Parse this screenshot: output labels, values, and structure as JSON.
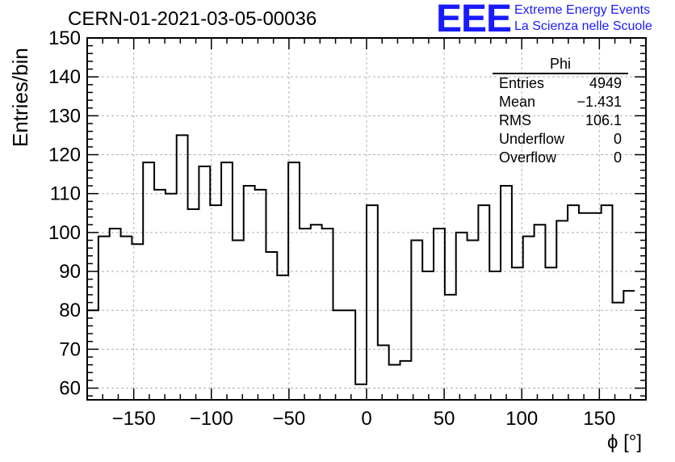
{
  "header": {
    "run_title": "CERN-01-2021-03-05-00036",
    "logo_text": "EEE",
    "logo_line1": "Extreme Energy Events",
    "logo_line2": "La Scienza nelle Scuole",
    "logo_color": "#1a1aff"
  },
  "stats": {
    "title": "Phi",
    "rows": [
      {
        "key": "Entries",
        "value": "4949"
      },
      {
        "key": "Mean",
        "value": "−1.431"
      },
      {
        "key": "RMS",
        "value": "106.1"
      },
      {
        "key": "Underflow",
        "value": "0"
      },
      {
        "key": "Overflow",
        "value": "0"
      }
    ]
  },
  "chart_data": {
    "type": "histogram",
    "title": "CERN-01-2021-03-05-00036",
    "xlabel": "ϕ [°]",
    "ylabel": "Entries/bin",
    "xlim": [
      -180,
      180
    ],
    "ylim": [
      57,
      150
    ],
    "grid": true,
    "bin_width": 7.2,
    "xticks": [
      -150,
      -100,
      -50,
      0,
      50,
      100,
      150
    ],
    "xtick_labels": [
      "−150",
      "−100",
      "−50",
      "0",
      "50",
      "100",
      "150"
    ],
    "yticks": [
      60,
      70,
      80,
      90,
      100,
      110,
      120,
      130,
      140,
      150
    ],
    "ytick_labels": [
      "60",
      "70",
      "80",
      "90",
      "100",
      "110",
      "120",
      "130",
      "140",
      "150"
    ],
    "bins": [
      {
        "x": -180.0,
        "y": 80
      },
      {
        "x": -172.8,
        "y": 99
      },
      {
        "x": -165.6,
        "y": 101
      },
      {
        "x": -158.4,
        "y": 99
      },
      {
        "x": -151.2,
        "y": 97
      },
      {
        "x": -144.0,
        "y": 118
      },
      {
        "x": -136.8,
        "y": 111
      },
      {
        "x": -129.6,
        "y": 110
      },
      {
        "x": -122.4,
        "y": 125
      },
      {
        "x": -115.2,
        "y": 106
      },
      {
        "x": -108.0,
        "y": 117
      },
      {
        "x": -100.8,
        "y": 107
      },
      {
        "x": -93.6,
        "y": 118
      },
      {
        "x": -86.4,
        "y": 98
      },
      {
        "x": -79.2,
        "y": 112
      },
      {
        "x": -72.0,
        "y": 111
      },
      {
        "x": -64.8,
        "y": 95
      },
      {
        "x": -57.6,
        "y": 89
      },
      {
        "x": -50.4,
        "y": 118
      },
      {
        "x": -43.2,
        "y": 101
      },
      {
        "x": -36.0,
        "y": 102
      },
      {
        "x": -28.8,
        "y": 101
      },
      {
        "x": -21.6,
        "y": 80
      },
      {
        "x": -14.4,
        "y": 80
      },
      {
        "x": -7.2,
        "y": 61
      },
      {
        "x": 0.0,
        "y": 107
      },
      {
        "x": 7.2,
        "y": 71
      },
      {
        "x": 14.4,
        "y": 66
      },
      {
        "x": 21.6,
        "y": 67
      },
      {
        "x": 28.8,
        "y": 98
      },
      {
        "x": 36.0,
        "y": 90
      },
      {
        "x": 43.2,
        "y": 101
      },
      {
        "x": 50.4,
        "y": 84
      },
      {
        "x": 57.6,
        "y": 100
      },
      {
        "x": 64.8,
        "y": 98
      },
      {
        "x": 72.0,
        "y": 107
      },
      {
        "x": 79.2,
        "y": 90
      },
      {
        "x": 86.4,
        "y": 112
      },
      {
        "x": 93.6,
        "y": 91
      },
      {
        "x": 100.8,
        "y": 99
      },
      {
        "x": 108.0,
        "y": 102
      },
      {
        "x": 115.2,
        "y": 91
      },
      {
        "x": 122.4,
        "y": 103
      },
      {
        "x": 129.6,
        "y": 107
      },
      {
        "x": 136.8,
        "y": 105
      },
      {
        "x": 144.0,
        "y": 105
      },
      {
        "x": 151.2,
        "y": 107
      },
      {
        "x": 158.4,
        "y": 82
      },
      {
        "x": 165.6,
        "y": 85
      }
    ]
  }
}
